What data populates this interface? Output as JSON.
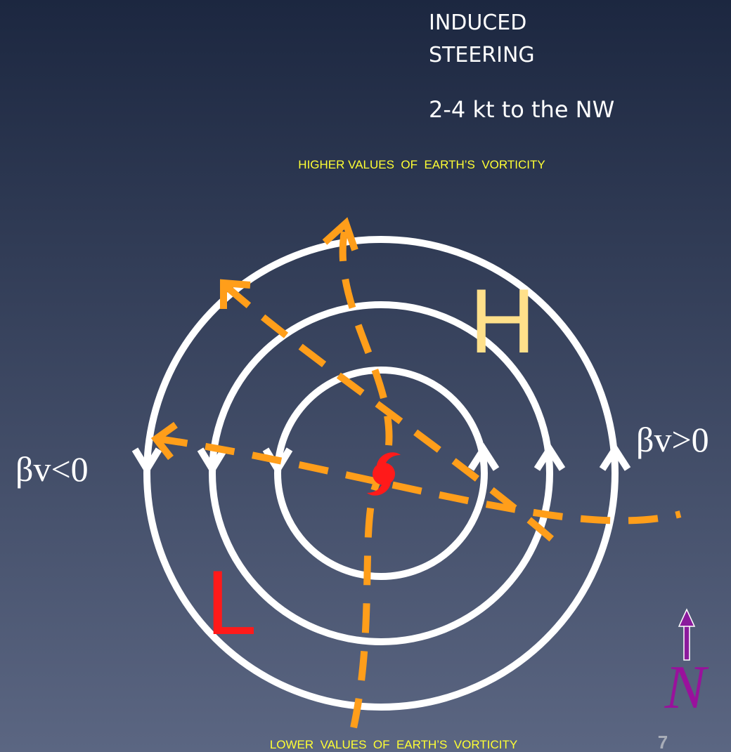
{
  "heading": {
    "lines": [
      "INDUCED",
      "STEERING"
    ],
    "speed": "2-4 kt to the NW"
  },
  "top_label": "HIGHER VALUES  OF  EARTH’S  VORTICITY",
  "bottom_label": "LOWER  VALUES  OF  EARTH’S  VORTICITY",
  "left_label": "βv<0",
  "right_label": "βv>0",
  "high": "H",
  "low": "L",
  "north": "N",
  "page_number": "7"
}
